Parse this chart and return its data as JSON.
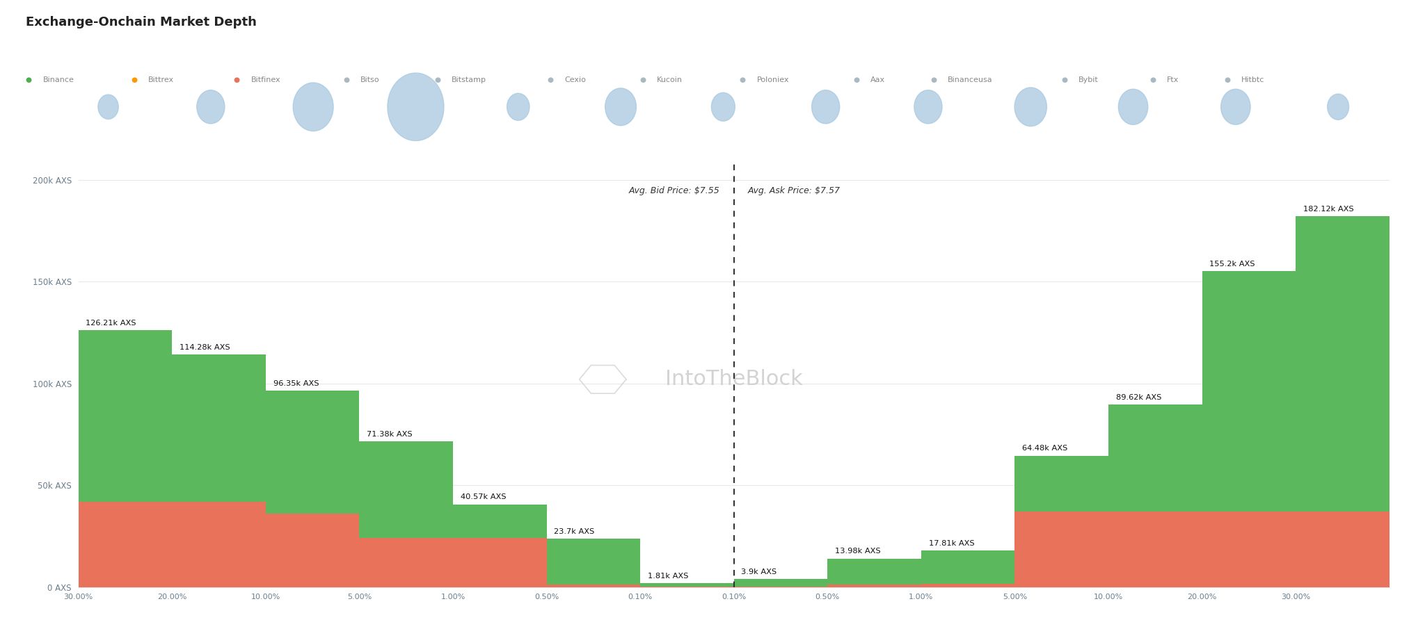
{
  "title": "Exchange-Onchain Market Depth",
  "background_color": "#ffffff",
  "bid_label": "Avg. Bid Price: $7.55",
  "ask_label": "Avg. Ask Price: $7.57",
  "watermark_text": "IntoTheBlock",
  "legend_items": [
    {
      "label": "Binance",
      "color": "#4caf50"
    },
    {
      "label": "Bittrex",
      "color": "#ff9800"
    },
    {
      "label": "Bitfinex",
      "color": "#e8735a"
    },
    {
      "label": "Bitso",
      "color": "#aab8c2"
    },
    {
      "label": "Bitstamp",
      "color": "#aab8c2"
    },
    {
      "label": "Cexio",
      "color": "#aab8c2"
    },
    {
      "label": "Kucoin",
      "color": "#aab8c2"
    },
    {
      "label": "Poloniex",
      "color": "#aab8c2"
    },
    {
      "label": "Aax",
      "color": "#aab8c2"
    },
    {
      "label": "Binanceusa",
      "color": "#aab8c2"
    },
    {
      "label": "Bybit",
      "color": "#aab8c2"
    },
    {
      "label": "Ftx",
      "color": "#aab8c2"
    },
    {
      "label": "Hitbtc",
      "color": "#aab8c2"
    }
  ],
  "bubble_sizes_raw": [
    38,
    52,
    75,
    105,
    42,
    58,
    44,
    52,
    52,
    60,
    55,
    55,
    40
  ],
  "bid_steps": [
    {
      "pct": "30.00%",
      "green": 126210,
      "red": 42000
    },
    {
      "pct": "20.00%",
      "green": 114280,
      "red": 42000
    },
    {
      "pct": "10.00%",
      "green": 96350,
      "red": 36000
    },
    {
      "pct": "5.00%",
      "green": 71380,
      "red": 24000
    },
    {
      "pct": "1.00%",
      "green": 40570,
      "red": 24000
    },
    {
      "pct": "0.50%",
      "green": 23700,
      "red": 1200
    },
    {
      "pct": "0.10%",
      "green": 1810,
      "red": 200
    }
  ],
  "ask_steps": [
    {
      "pct": "0.10%",
      "green": 3900,
      "red": 200
    },
    {
      "pct": "0.50%",
      "green": 13980,
      "red": 1200
    },
    {
      "pct": "1.00%",
      "green": 17810,
      "red": 1500
    },
    {
      "pct": "5.00%",
      "green": 64480,
      "red": 37000
    },
    {
      "pct": "10.00%",
      "green": 89620,
      "red": 37000
    },
    {
      "pct": "20.00%",
      "green": 155200,
      "red": 37000
    },
    {
      "pct": "30.00%",
      "green": 182120,
      "red": 37000
    }
  ],
  "bid_labels": [
    "126.21k AXS",
    "114.28k AXS",
    "96.35k AXS",
    "71.38k AXS",
    "40.57k AXS",
    "23.7k AXS",
    "1.81k AXS"
  ],
  "ask_labels": [
    "3.9k AXS",
    "13.98k AXS",
    "17.81k AXS",
    "64.48k AXS",
    "89.62k AXS",
    "155.2k AXS",
    "182.12k AXS"
  ],
  "yticks": [
    0,
    50000,
    100000,
    150000,
    200000
  ],
  "ytick_labels": [
    "0 AXS",
    "50k AXS",
    "100k AXS",
    "150k AXS",
    "200k AXS"
  ],
  "green_color": "#5cb85c",
  "red_color": "#e8735a",
  "fig_width": 20.48,
  "fig_height": 9.18
}
